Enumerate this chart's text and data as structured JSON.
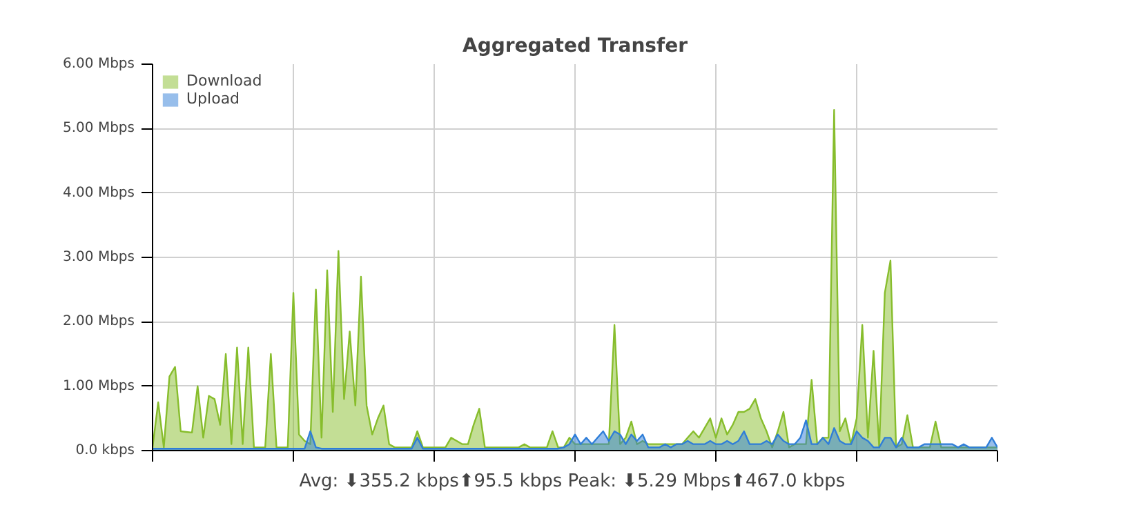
{
  "chart_data": {
    "type": "area",
    "title": "Aggregated Transfer",
    "categories": [
      null,
      null,
      null,
      null,
      null,
      null,
      null,
      null,
      null,
      null,
      null,
      null,
      null,
      null,
      null,
      null,
      null,
      null,
      null,
      null,
      null,
      null,
      null,
      null,
      null,
      null,
      null,
      null,
      null,
      null,
      null,
      null,
      null,
      null,
      null,
      null,
      null,
      null,
      null,
      null,
      null,
      null,
      null,
      null,
      null,
      null,
      null,
      null,
      null,
      null,
      null,
      null,
      null,
      null,
      null,
      null,
      null,
      null,
      null,
      null,
      null,
      null,
      null,
      null,
      null,
      null,
      null,
      null,
      null,
      null,
      null,
      null,
      null,
      null,
      null,
      null,
      null,
      null,
      null,
      null,
      null,
      null,
      null,
      null,
      null,
      null,
      null,
      null,
      null,
      null,
      null,
      null,
      null,
      null,
      null,
      null,
      null,
      null,
      null,
      null,
      null,
      null,
      null,
      null,
      null,
      null,
      null,
      null,
      null,
      null,
      null,
      null,
      null,
      null,
      null,
      null,
      null,
      null,
      null,
      null,
      null,
      null,
      null,
      null,
      null,
      null,
      null,
      null,
      null,
      null,
      null,
      null,
      null,
      null,
      null,
      null,
      null,
      null,
      null,
      null,
      null,
      null,
      null,
      null,
      null,
      null,
      null,
      null,
      null,
      null,
      null
    ],
    "series": [
      {
        "name": "Download",
        "color": "#87bd2c",
        "values": [
          0.05,
          0.75,
          0.05,
          1.15,
          1.3,
          0.3,
          0.29,
          0.28,
          1.0,
          0.2,
          0.85,
          0.8,
          0.4,
          1.5,
          0.1,
          1.6,
          0.1,
          1.6,
          0.05,
          0.05,
          0.05,
          1.5,
          0.05,
          0.05,
          0.05,
          2.45,
          0.25,
          0.15,
          0.1,
          2.5,
          0.2,
          2.8,
          0.6,
          3.1,
          0.8,
          1.85,
          0.7,
          2.7,
          0.7,
          0.25,
          0.5,
          0.7,
          0.1,
          0.05,
          0.05,
          0.05,
          0.05,
          0.3,
          0.05,
          0.05,
          0.05,
          0.05,
          0.05,
          0.2,
          0.15,
          0.1,
          0.1,
          0.4,
          0.65,
          0.05,
          0.05,
          0.05,
          0.05,
          0.05,
          0.05,
          0.05,
          0.1,
          0.05,
          0.05,
          0.05,
          0.05,
          0.3,
          0.05,
          0.05,
          0.2,
          0.1,
          0.1,
          0.1,
          0.1,
          0.1,
          0.1,
          0.1,
          1.95,
          0.1,
          0.2,
          0.45,
          0.1,
          0.15,
          0.1,
          0.1,
          0.1,
          0.1,
          0.1,
          0.1,
          0.1,
          0.2,
          0.3,
          0.2,
          0.35,
          0.5,
          0.2,
          0.5,
          0.25,
          0.4,
          0.6,
          0.6,
          0.65,
          0.8,
          0.5,
          0.3,
          0.05,
          0.3,
          0.6,
          0.05,
          0.1,
          0.1,
          0.1,
          1.1,
          0.1,
          0.2,
          0.2,
          5.29,
          0.3,
          0.5,
          0.1,
          0.5,
          1.95,
          0.2,
          1.55,
          0.05,
          2.45,
          2.95,
          0.05,
          0.1,
          0.55,
          0.05,
          0.05,
          0.05,
          0.05,
          0.45,
          0.05,
          0.05,
          0.05,
          0.05,
          0.05,
          0.05,
          0.05,
          0.05,
          0.05,
          0.05,
          0.05
        ]
      },
      {
        "name": "Upload",
        "color": "#2f7ed8",
        "values": [
          0.03,
          0.03,
          0.03,
          0.03,
          0.03,
          0.03,
          0.03,
          0.03,
          0.03,
          0.03,
          0.03,
          0.03,
          0.03,
          0.03,
          0.03,
          0.03,
          0.03,
          0.03,
          0.03,
          0.03,
          0.03,
          0.03,
          0.03,
          0.03,
          0.03,
          0.03,
          0.03,
          0.03,
          0.3,
          0.05,
          0.03,
          0.03,
          0.03,
          0.03,
          0.03,
          0.03,
          0.03,
          0.03,
          0.03,
          0.03,
          0.03,
          0.03,
          0.03,
          0.03,
          0.03,
          0.03,
          0.03,
          0.2,
          0.03,
          0.03,
          0.03,
          0.03,
          0.03,
          0.03,
          0.03,
          0.03,
          0.03,
          0.03,
          0.03,
          0.03,
          0.03,
          0.03,
          0.03,
          0.03,
          0.03,
          0.03,
          0.03,
          0.03,
          0.03,
          0.03,
          0.03,
          0.03,
          0.03,
          0.05,
          0.1,
          0.25,
          0.1,
          0.2,
          0.1,
          0.2,
          0.3,
          0.15,
          0.3,
          0.25,
          0.1,
          0.25,
          0.15,
          0.25,
          0.05,
          0.05,
          0.05,
          0.1,
          0.05,
          0.1,
          0.1,
          0.15,
          0.1,
          0.1,
          0.1,
          0.15,
          0.1,
          0.1,
          0.15,
          0.1,
          0.15,
          0.3,
          0.1,
          0.1,
          0.1,
          0.15,
          0.1,
          0.25,
          0.15,
          0.1,
          0.1,
          0.2,
          0.47,
          0.1,
          0.1,
          0.2,
          0.1,
          0.35,
          0.15,
          0.1,
          0.1,
          0.3,
          0.2,
          0.15,
          0.05,
          0.05,
          0.2,
          0.2,
          0.05,
          0.2,
          0.05,
          0.05,
          0.05,
          0.1,
          0.1,
          0.1,
          0.1,
          0.1,
          0.1,
          0.05,
          0.1,
          0.05,
          0.05,
          0.05,
          0.05,
          0.2,
          0.05
        ]
      }
    ],
    "ylim": [
      0,
      6
    ],
    "yticks": [
      {
        "value": 0,
        "label": "0.0 kbps"
      },
      {
        "value": 1,
        "label": "1.00 Mbps"
      },
      {
        "value": 2,
        "label": "2.00 Mbps"
      },
      {
        "value": 3,
        "label": "3.00 Mbps"
      },
      {
        "value": 4,
        "label": "4.00 Mbps"
      },
      {
        "value": 5,
        "label": "5.00 Mbps"
      },
      {
        "value": 6,
        "label": "6.00 Mbps"
      }
    ],
    "grid": true,
    "legend": "top left",
    "annotations": [
      "Avg: ⬇355.2 kbps⬆95.5 kbps  Peak: ⬇5.29 Mbps⬆467.0 kbps"
    ]
  }
}
